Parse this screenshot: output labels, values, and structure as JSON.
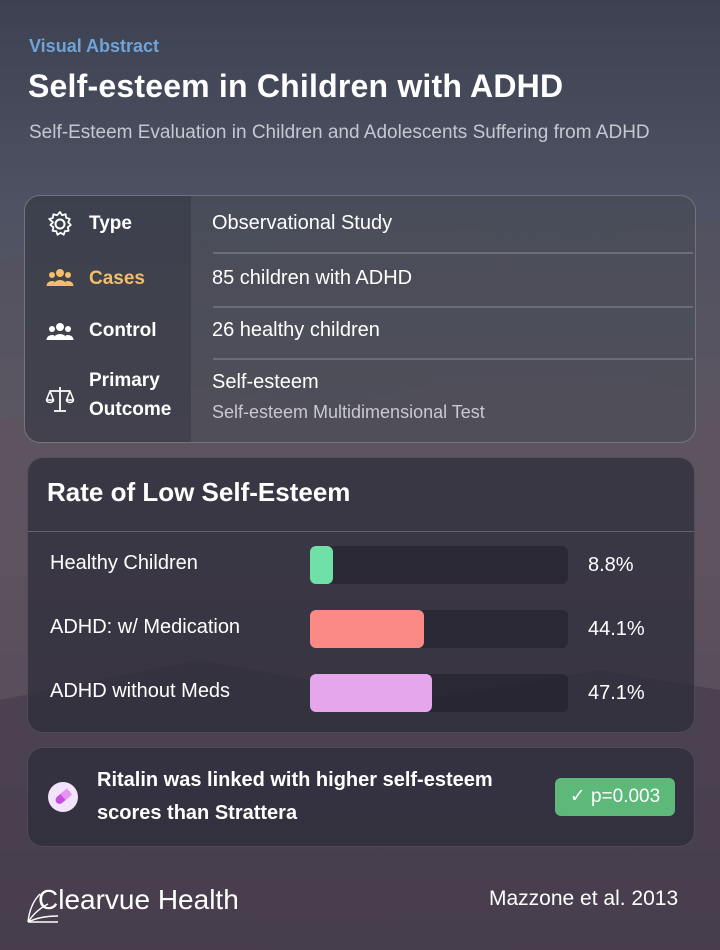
{
  "header": {
    "kicker": "Visual Abstract",
    "title": "Self-esteem in Children with ADHD",
    "subtitle": "Self-Esteem Evaluation in Children and Adolescents Suffering from ADHD"
  },
  "study": {
    "type_label": "Type",
    "type_value": "Observational Study",
    "cases_label": "Cases",
    "cases_value": "85 children with ADHD",
    "control_label": "Control",
    "control_value": "26 healthy children",
    "outcome_label_1": "Primary",
    "outcome_label_2": "Outcome",
    "outcome_value": "Self-esteem",
    "outcome_detail": "Self-esteem Multidimensional Test"
  },
  "rates": {
    "title": "Rate of Low Self-Esteem",
    "items": [
      {
        "label": "Healthy Children",
        "value_text": "8.8%",
        "value": 8.8,
        "color": "#6ee0a8"
      },
      {
        "label": "ADHD: w/ Medication",
        "value_text": "44.1%",
        "value": 44.1,
        "color": "#fb8a86"
      },
      {
        "label": "ADHD without Meds",
        "value_text": "47.1%",
        "value": 47.1,
        "color": "#e5a6ec"
      }
    ]
  },
  "finding": {
    "text": "Ritalin was linked with higher self-esteem scores than Strattera",
    "badge": "p=0.003",
    "badge_color": "#5cb97a"
  },
  "footer": {
    "brand": "Clearvue Health",
    "citation": "Mazzone et al. 2013"
  },
  "colors": {
    "accent_blue": "#6fa3d9",
    "cases_orange": "#f2be6a"
  }
}
